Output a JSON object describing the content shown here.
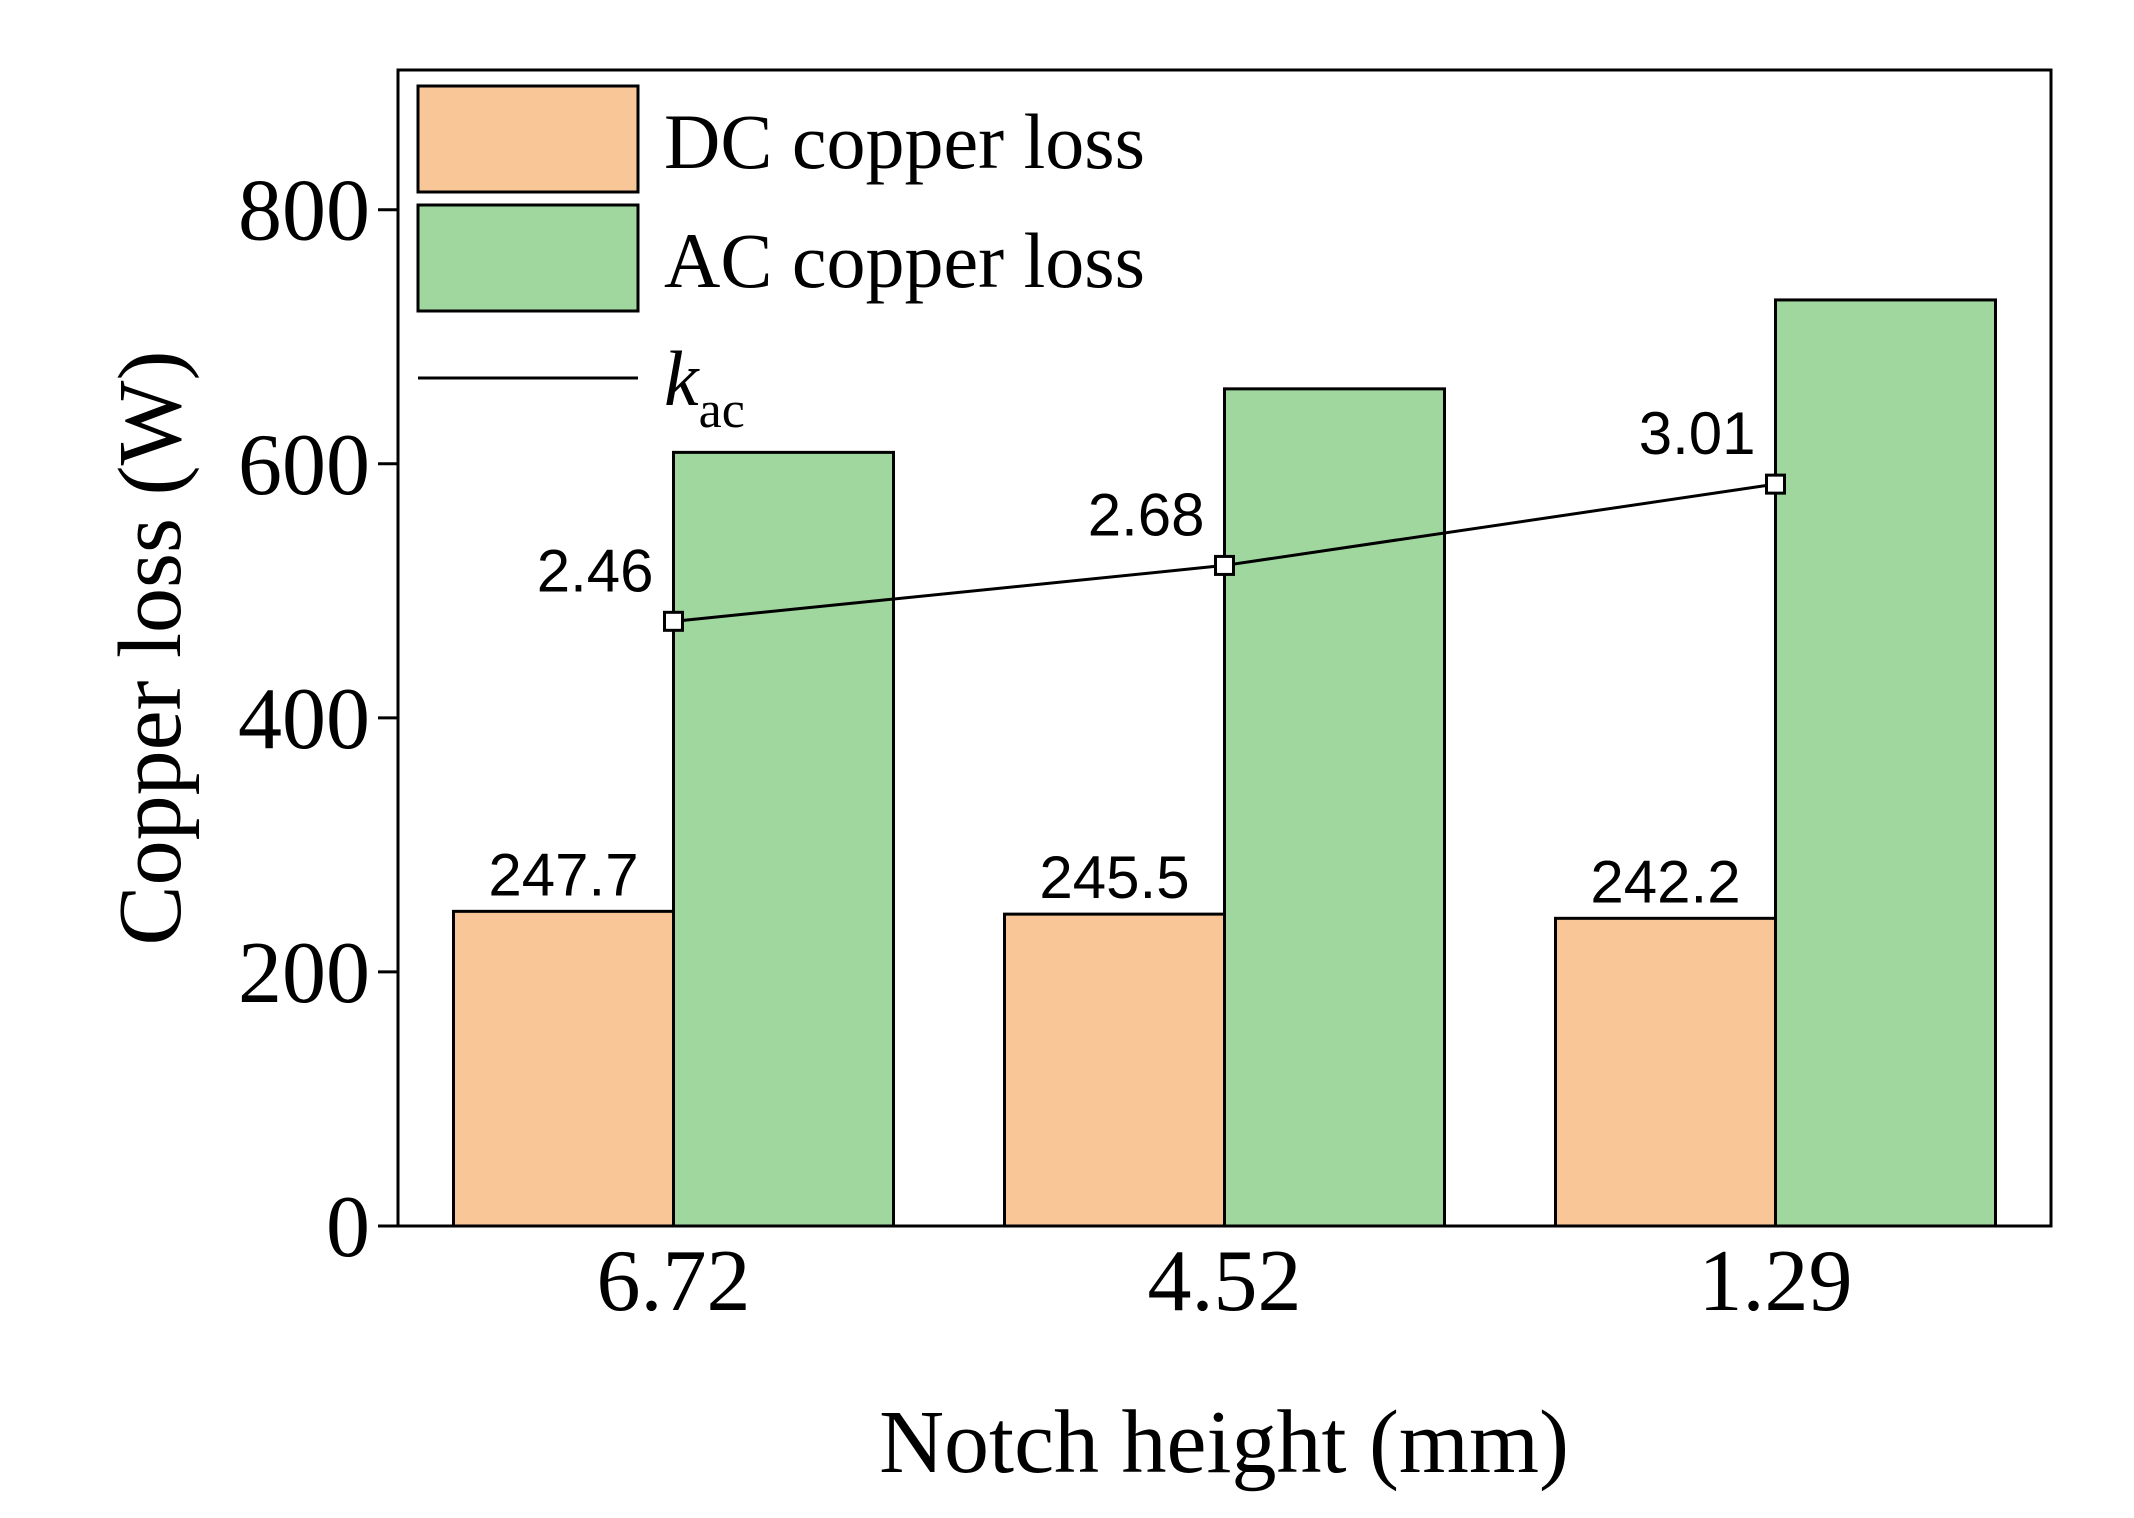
{
  "chart_data": {
    "type": "bar",
    "categories": [
      "6.72",
      "4.52",
      "1.29"
    ],
    "series": [
      {
        "name": "DC copper loss",
        "values": [
          247.7,
          245.5,
          242.2
        ],
        "color": "#f9c797"
      },
      {
        "name": "AC copper loss",
        "values": [
          609,
          659,
          729
        ],
        "color": "#9fd79f"
      }
    ],
    "line_series": {
      "name_main": "k",
      "name_sub": "ac",
      "values": [
        2.46,
        2.68,
        3.01
      ],
      "labels": [
        "2.46",
        "2.68",
        "3.01"
      ],
      "plotted_at_copper_loss": [
        476,
        520,
        584
      ]
    },
    "dc_labels": [
      "247.7",
      "245.5",
      "242.2"
    ],
    "xlabel": "Notch height (mm)",
    "ylabel": "Copper loss (W)",
    "ylim": [
      0,
      910
    ],
    "yticks": [
      0,
      200,
      400,
      600,
      800
    ],
    "legend_position": "top-left"
  }
}
